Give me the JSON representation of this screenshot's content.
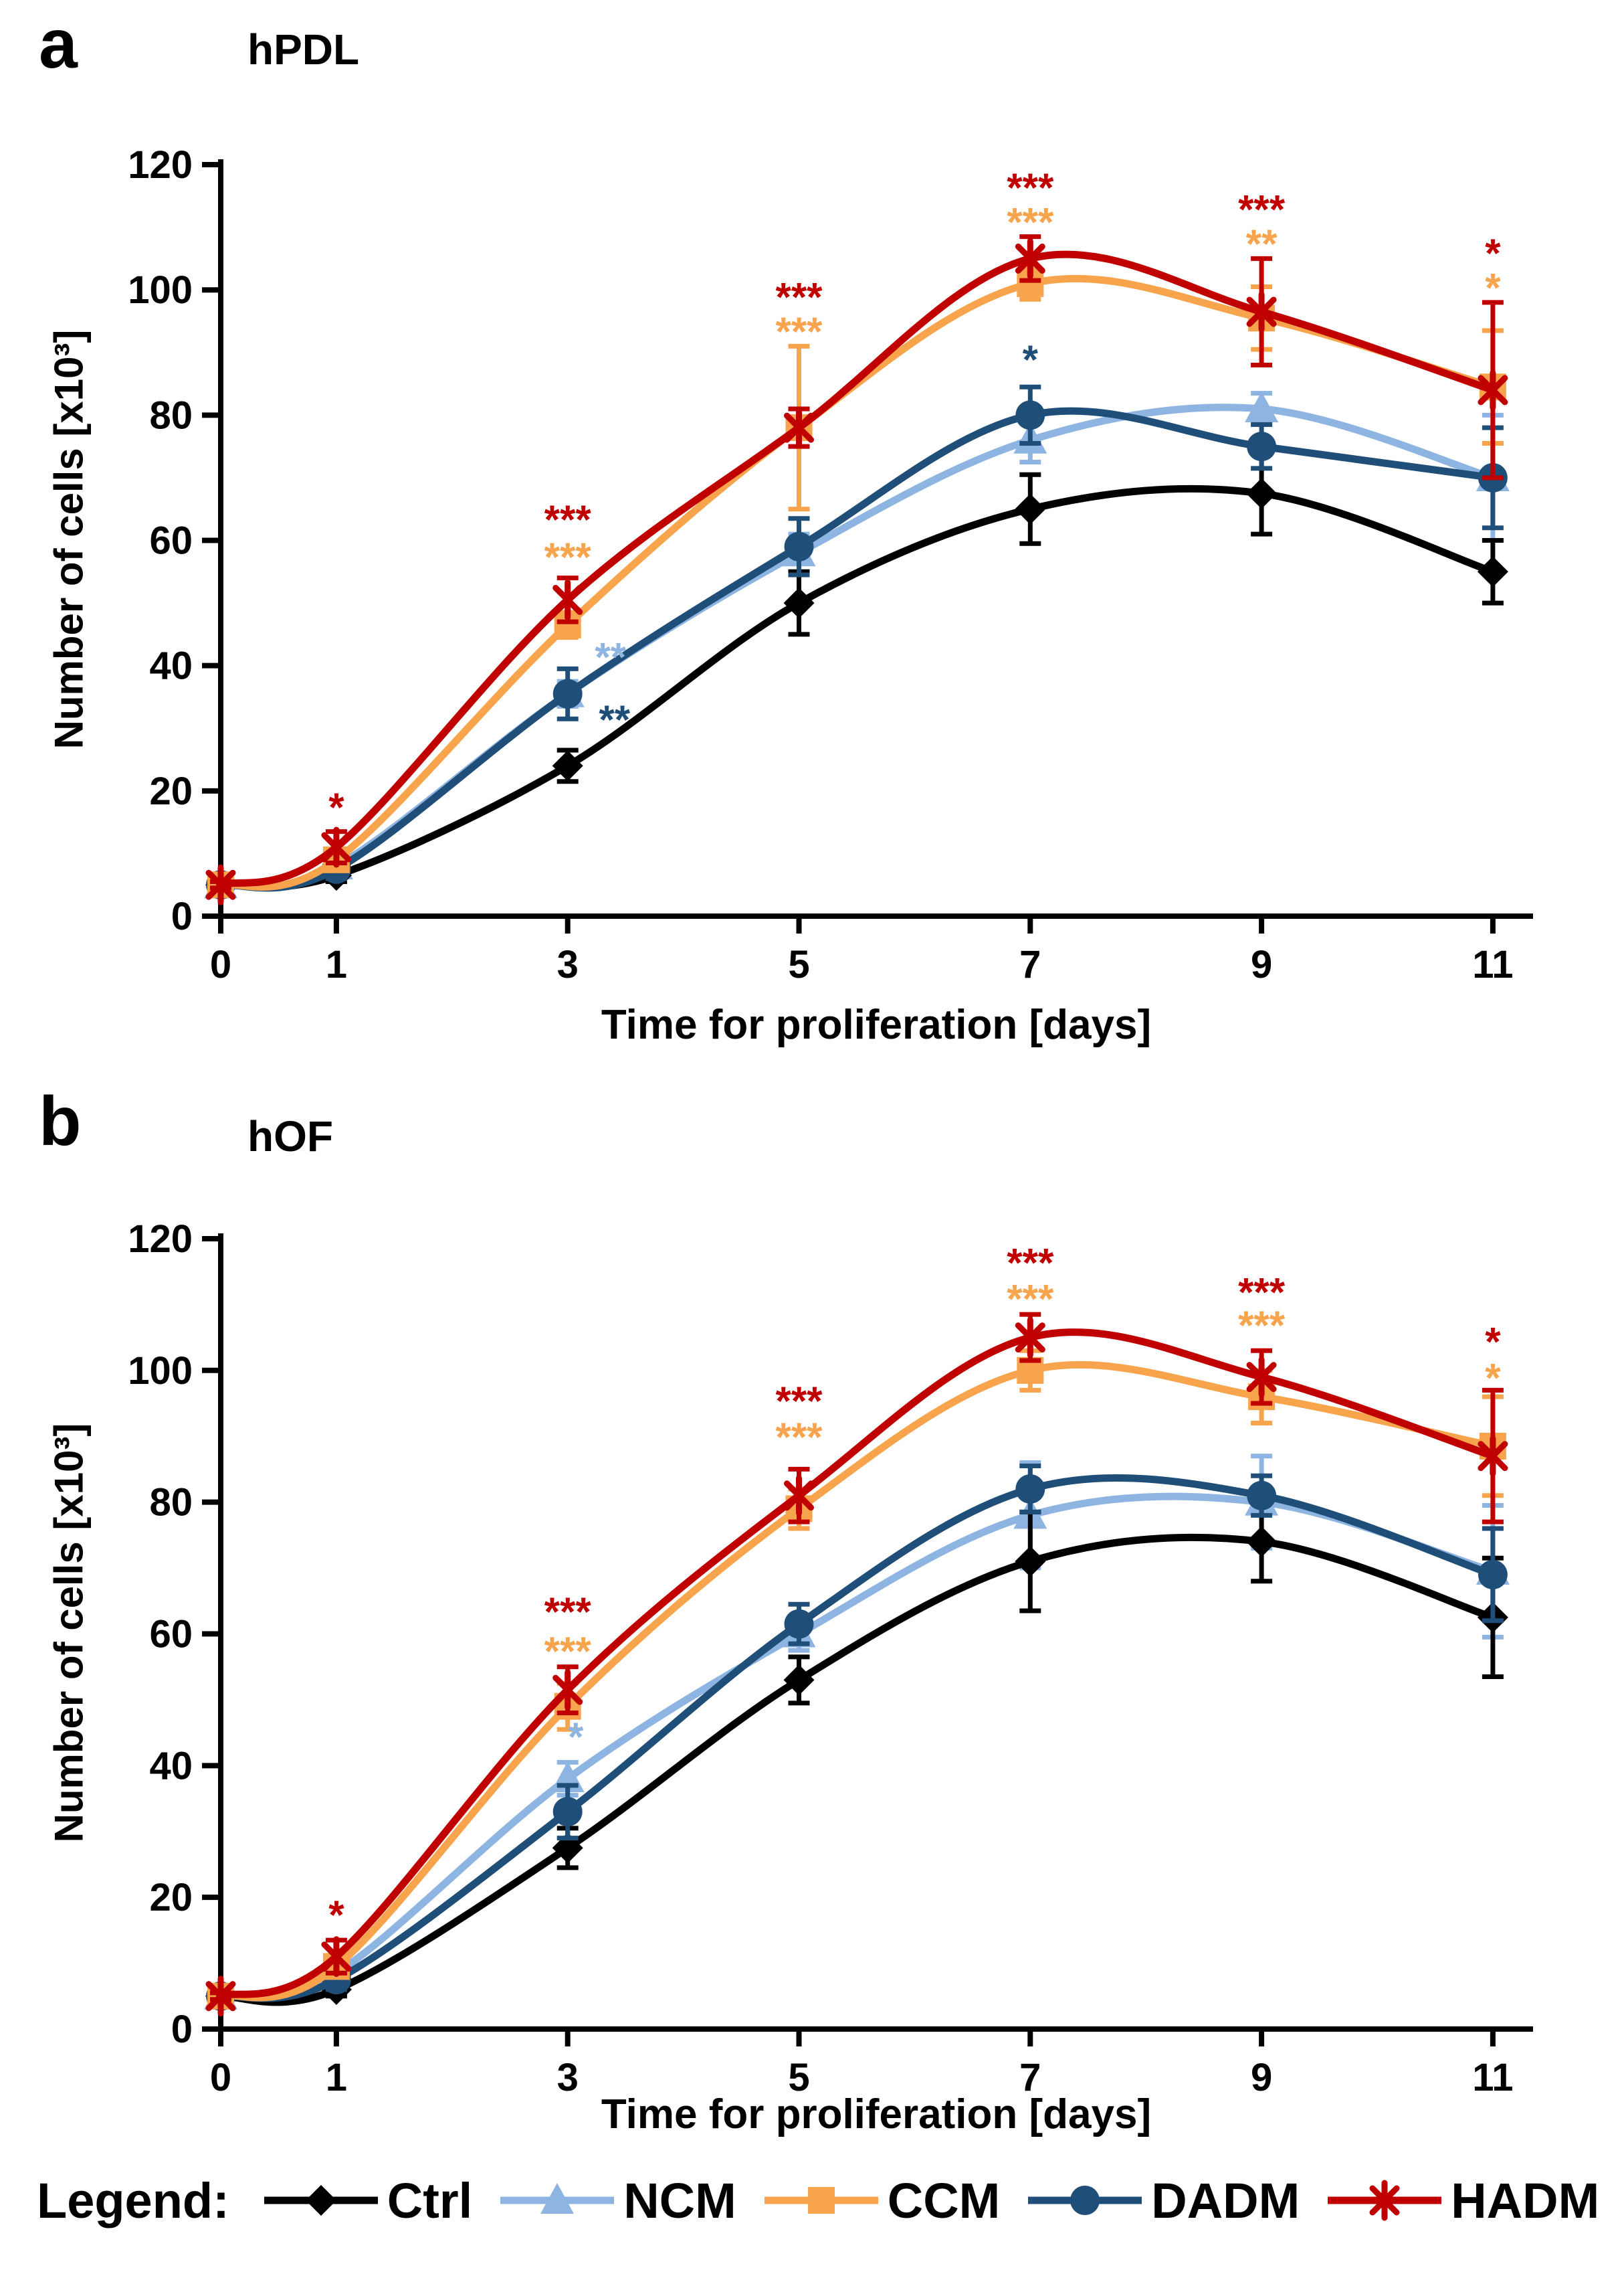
{
  "legend": {
    "label": "Legend:",
    "items": [
      {
        "name": "Ctrl",
        "key": "ctrl",
        "marker": "diamond"
      },
      {
        "name": "NCM",
        "key": "ncm",
        "marker": "triangle"
      },
      {
        "name": "CCM",
        "key": "ccm",
        "marker": "square"
      },
      {
        "name": "DADM",
        "key": "dadm",
        "marker": "circle"
      },
      {
        "name": "HADM",
        "key": "hadm",
        "marker": "asterisk"
      }
    ]
  },
  "colors": {
    "ctrl": "#000000",
    "ncm": "#8EB4E2",
    "ccm": "#F8A44C",
    "dadm": "#1F4E79",
    "hadm": "#C00000",
    "axis": "#000000"
  },
  "chart_data": [
    {
      "type": "line",
      "panel": "a",
      "title": "hPDL",
      "xlabel": "Time for proliferation [days]",
      "ylabel": "Number of cells [x10³]",
      "x": [
        0,
        1,
        3,
        5,
        7,
        9,
        11
      ],
      "x_tick_labels": [
        "0",
        "1",
        "3",
        "5",
        "7",
        "9",
        "11"
      ],
      "y_ticks": [
        0,
        20,
        40,
        60,
        80,
        100,
        120
      ],
      "ylim": [
        0,
        120
      ],
      "grid": false,
      "series": [
        {
          "name": "Ctrl",
          "key": "ctrl",
          "marker": "diamond",
          "values": [
            5,
            6.5,
            24,
            50,
            65,
            67.5,
            55
          ],
          "errors": [
            0.5,
            1,
            2.5,
            5,
            5.5,
            6.5,
            5
          ]
        },
        {
          "name": "NCM",
          "key": "ncm",
          "marker": "triangle",
          "values": [
            5,
            8,
            35.5,
            58,
            76,
            81,
            70
          ],
          "errors": [
            0.5,
            1.5,
            2,
            3,
            3.5,
            2.5,
            10
          ]
        },
        {
          "name": "CCM",
          "key": "ccm",
          "marker": "square",
          "values": [
            5,
            9,
            46.5,
            78,
            101,
            95.5,
            84.5
          ],
          "errors": [
            0.5,
            1.5,
            2,
            13,
            2.5,
            5,
            9
          ]
        },
        {
          "name": "DADM",
          "key": "dadm",
          "marker": "circle",
          "values": [
            5,
            7.5,
            35.5,
            59,
            80,
            75,
            70
          ],
          "errors": [
            0.5,
            1.5,
            4,
            4.5,
            4.5,
            3.5,
            8
          ]
        },
        {
          "name": "HADM",
          "key": "hadm",
          "marker": "asterisk",
          "values": [
            5,
            11,
            50.5,
            78,
            105,
            96.5,
            84
          ],
          "errors": [
            0.5,
            2.5,
            3.5,
            3,
            3.5,
            8.5,
            14
          ]
        }
      ],
      "significance": [
        {
          "day": 1,
          "text": "*",
          "key": "hadm",
          "value": 17.5,
          "dx": 0
        },
        {
          "day": 3,
          "text": "***",
          "key": "hadm",
          "value": 63.5,
          "dx": 0
        },
        {
          "day": 3,
          "text": "***",
          "key": "ccm",
          "value": 57.5,
          "dx": 0
        },
        {
          "day": 3,
          "text": "**",
          "key": "ncm",
          "value": 41.5,
          "dx": 64
        },
        {
          "day": 3,
          "text": "**",
          "key": "dadm",
          "value": 31.5,
          "dx": 70
        },
        {
          "day": 5,
          "text": "***",
          "key": "hadm",
          "value": 99,
          "dx": 0
        },
        {
          "day": 5,
          "text": "***",
          "key": "ccm",
          "value": 93.5,
          "dx": 0
        },
        {
          "day": 7,
          "text": "***",
          "key": "hadm",
          "value": 116.5,
          "dx": 0
        },
        {
          "day": 7,
          "text": "***",
          "key": "ccm",
          "value": 111,
          "dx": 0
        },
        {
          "day": 7,
          "text": "*",
          "key": "dadm",
          "value": 89,
          "dx": 0
        },
        {
          "day": 9,
          "text": "***",
          "key": "hadm",
          "value": 113,
          "dx": 0
        },
        {
          "day": 9,
          "text": "**",
          "key": "ccm",
          "value": 107.5,
          "dx": 0
        },
        {
          "day": 11,
          "text": "*",
          "key": "hadm",
          "value": 106,
          "dx": 0
        },
        {
          "day": 11,
          "text": "*",
          "key": "ccm",
          "value": 100.5,
          "dx": 0
        }
      ]
    },
    {
      "type": "line",
      "panel": "b",
      "title": "hOF",
      "xlabel": "Time for proliferation [days]",
      "ylabel": "Number of cells [x10³]",
      "x": [
        0,
        1,
        3,
        5,
        7,
        9,
        11
      ],
      "x_tick_labels": [
        "0",
        "1",
        "3",
        "5",
        "7",
        "9",
        "11"
      ],
      "y_ticks": [
        0,
        20,
        40,
        60,
        80,
        100,
        120
      ],
      "ylim": [
        0,
        120
      ],
      "grid": false,
      "series": [
        {
          "name": "Ctrl",
          "key": "ctrl",
          "marker": "diamond",
          "values": [
            5,
            6,
            27.5,
            53,
            71,
            74,
            62.5
          ],
          "errors": [
            0.5,
            1,
            3,
            3.5,
            7.5,
            6,
            9
          ]
        },
        {
          "name": "NCM",
          "key": "ncm",
          "marker": "triangle",
          "values": [
            5,
            8.5,
            38,
            60,
            78,
            80,
            69.5
          ],
          "errors": [
            0.5,
            1.5,
            2.5,
            2.5,
            8,
            7,
            10
          ]
        },
        {
          "name": "CCM",
          "key": "ccm",
          "marker": "square",
          "values": [
            5,
            9.5,
            49,
            79,
            100,
            96,
            88.5
          ],
          "errors": [
            0.5,
            1.5,
            3.5,
            3,
            3,
            4,
            7.5
          ]
        },
        {
          "name": "DADM",
          "key": "dadm",
          "marker": "circle",
          "values": [
            5,
            7.5,
            33,
            61.5,
            82,
            81,
            69
          ],
          "errors": [
            0.5,
            1.5,
            4,
            3,
            3.5,
            3,
            7
          ]
        },
        {
          "name": "HADM",
          "key": "hadm",
          "marker": "asterisk",
          "values": [
            5,
            11,
            51.5,
            81,
            105,
            99,
            87
          ],
          "errors": [
            0.5,
            2.5,
            3.5,
            4,
            3.5,
            4,
            10
          ]
        }
      ],
      "significance": [
        {
          "day": 1,
          "text": "*",
          "key": "hadm",
          "value": 17.5,
          "dx": 0
        },
        {
          "day": 3,
          "text": "***",
          "key": "hadm",
          "value": 63.5,
          "dx": 0
        },
        {
          "day": 3,
          "text": "***",
          "key": "ccm",
          "value": 57.5,
          "dx": 0
        },
        {
          "day": 3,
          "text": "*",
          "key": "ncm",
          "value": 44.5,
          "dx": 12
        },
        {
          "day": 5,
          "text": "***",
          "key": "hadm",
          "value": 95.5,
          "dx": 0
        },
        {
          "day": 5,
          "text": "***",
          "key": "ccm",
          "value": 90,
          "dx": 0
        },
        {
          "day": 7,
          "text": "***",
          "key": "hadm",
          "value": 116.5,
          "dx": 0
        },
        {
          "day": 7,
          "text": "***",
          "key": "ccm",
          "value": 111,
          "dx": 0
        },
        {
          "day": 9,
          "text": "***",
          "key": "hadm",
          "value": 112,
          "dx": 0
        },
        {
          "day": 9,
          "text": "***",
          "key": "ccm",
          "value": 107,
          "dx": 0
        },
        {
          "day": 11,
          "text": "*",
          "key": "hadm",
          "value": 104.5,
          "dx": 0
        },
        {
          "day": 11,
          "text": "*",
          "key": "ccm",
          "value": 99,
          "dx": 0
        }
      ]
    }
  ]
}
